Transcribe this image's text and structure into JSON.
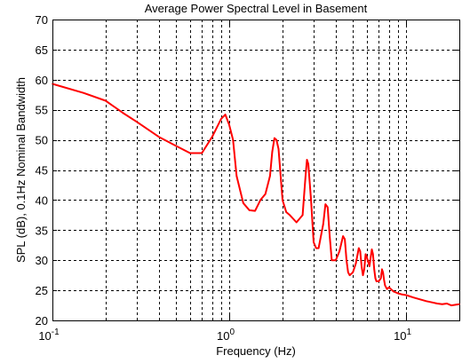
{
  "chart_data": {
    "type": "line",
    "title": "Average Power Spectral Level in Basement",
    "xlabel": "Frequency (Hz)",
    "ylabel": "SPL (dB), 0.1Hz Nominal Bandwidth",
    "xscale": "log",
    "xlim": [
      0.1,
      20
    ],
    "ylim": [
      20,
      70
    ],
    "y_ticks": [
      20,
      25,
      30,
      35,
      40,
      45,
      50,
      55,
      60,
      65,
      70
    ],
    "x_tick_labels": [
      {
        "base": "10",
        "exp": "-1",
        "value": 0.1
      },
      {
        "base": "10",
        "exp": "0",
        "value": 1
      },
      {
        "base": "10",
        "exp": "1",
        "value": 10
      }
    ],
    "grid": true,
    "line_color": "#ff0000",
    "series": [
      {
        "x": [
          0.1,
          0.15,
          0.2,
          0.25,
          0.3,
          0.4,
          0.5,
          0.6,
          0.7,
          0.8,
          0.9,
          0.95,
          1.0,
          1.05,
          1.1,
          1.2,
          1.3,
          1.4,
          1.5,
          1.6,
          1.7,
          1.75,
          1.8,
          1.85,
          1.9,
          2.0,
          2.1,
          2.2,
          2.4,
          2.6,
          2.7,
          2.75,
          2.8,
          2.9,
          3.0,
          3.1,
          3.2,
          3.4,
          3.5,
          3.6,
          3.7,
          3.8,
          4.0,
          4.2,
          4.4,
          4.5,
          4.6,
          4.7,
          4.8,
          5.0,
          5.2,
          5.4,
          5.5,
          5.6,
          5.7,
          5.8,
          5.9,
          6.0,
          6.2,
          6.4,
          6.5,
          6.6,
          6.7,
          6.8,
          7.0,
          7.2,
          7.3,
          7.4,
          7.5,
          7.6,
          7.8,
          8.0,
          8.5,
          9.0,
          9.5,
          10.0,
          11.0,
          12.0,
          13.0,
          14.0,
          15.0,
          16.0,
          17.0,
          18.0,
          19.0,
          20.0
        ],
        "y": [
          59.3,
          57.8,
          56.5,
          54.5,
          53.0,
          50.5,
          49.0,
          47.8,
          47.8,
          50.5,
          53.5,
          54.2,
          52.5,
          50.0,
          44.0,
          39.5,
          38.3,
          38.2,
          40.0,
          41.0,
          44.0,
          48.0,
          50.3,
          50.0,
          48.5,
          40.0,
          38.0,
          37.5,
          36.3,
          37.5,
          44.0,
          46.7,
          46.0,
          40.0,
          33.0,
          32.0,
          32.0,
          36.0,
          39.3,
          38.8,
          34.0,
          30.0,
          30.0,
          31.5,
          34.0,
          33.5,
          30.0,
          28.0,
          27.5,
          28.0,
          29.5,
          32.0,
          31.5,
          29.0,
          27.5,
          28.5,
          31.0,
          30.5,
          29.0,
          31.8,
          31.0,
          28.5,
          27.0,
          26.5,
          26.5,
          27.0,
          28.5,
          28.0,
          26.8,
          25.8,
          25.2,
          25.5,
          24.8,
          24.5,
          24.3,
          24.2,
          23.8,
          23.5,
          23.2,
          23.0,
          22.8,
          22.7,
          22.8,
          22.5,
          22.6,
          22.7
        ]
      }
    ]
  }
}
